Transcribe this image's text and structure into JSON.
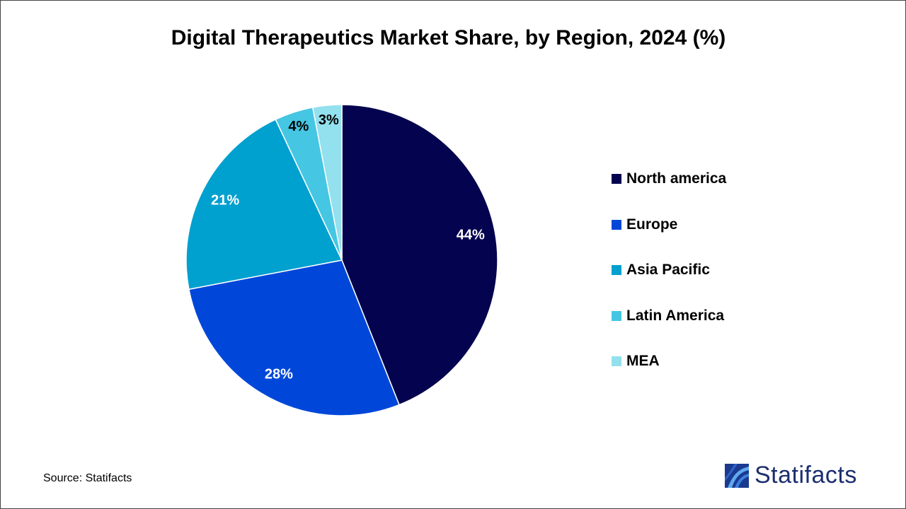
{
  "chart_data": {
    "type": "pie",
    "title": "Digital Therapeutics Market Share, by Region, 2024 (%)",
    "categories": [
      "North america",
      "Europe",
      "Asia Pacific",
      "Latin America",
      "MEA"
    ],
    "values": [
      44,
      28,
      21,
      4,
      3
    ],
    "data_labels": [
      "44%",
      "28%",
      "21%",
      "4%",
      "3%"
    ],
    "colors": [
      "#03034f",
      "#0047d9",
      "#00a0cf",
      "#45c6e3",
      "#93e0ee"
    ],
    "label_colors": [
      "#ffffff",
      "#ffffff",
      "#ffffff",
      "#000000",
      "#000000"
    ],
    "legend_position": "right"
  },
  "footer": {
    "source": "Source: Statifacts",
    "logo_text": "Statifacts"
  }
}
